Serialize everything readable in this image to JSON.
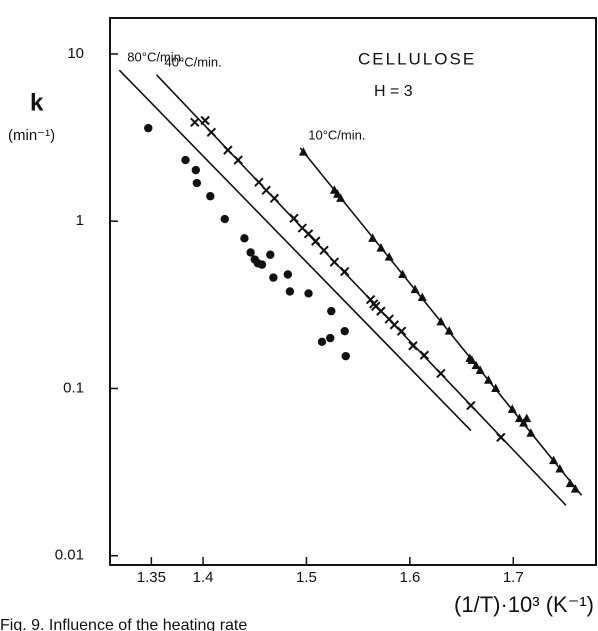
{
  "chart_data": {
    "type": "scatter",
    "title": "CELLULOSE",
    "subtitle": "H = 3",
    "y_label": "k",
    "y_unit": "(min⁻¹)",
    "x_label": "(1/T)·10³ (K⁻¹)",
    "caption": "Fig. 9. Influence of the heating rate",
    "xlim": [
      1.31,
      1.78
    ],
    "ylim": [
      0.0088,
      16.4
    ],
    "log_y": true,
    "xticks": [
      1.35,
      1.4,
      1.5,
      1.6,
      1.7
    ],
    "yticks": [
      10,
      1,
      0.1,
      0.01
    ],
    "color": "#111111",
    "series": [
      {
        "name": "80°C/min.",
        "marker": "circle",
        "x": [
          1.347,
          1.383,
          1.393,
          1.394,
          1.407,
          1.421,
          1.44,
          1.446,
          1.45,
          1.453,
          1.457,
          1.465,
          1.468,
          1.482,
          1.484,
          1.502,
          1.515,
          1.524,
          1.523,
          1.537,
          1.538
        ],
        "values": [
          3.6,
          2.32,
          2.02,
          1.69,
          1.41,
          1.03,
          0.79,
          0.65,
          0.59,
          0.56,
          0.55,
          0.63,
          0.46,
          0.48,
          0.38,
          0.37,
          0.19,
          0.29,
          0.2,
          0.22,
          0.156
        ],
        "fit_x": [
          1.319,
          1.659
        ],
        "fit_values": [
          8.0,
          0.056
        ]
      },
      {
        "name": "40°C/min.",
        "marker": "cross",
        "x": [
          1.392,
          1.402,
          1.408,
          1.424,
          1.434,
          1.454,
          1.461,
          1.469,
          1.488,
          1.496,
          1.502,
          1.509,
          1.517,
          1.527,
          1.537,
          1.562,
          1.567,
          1.572,
          1.58,
          1.585,
          1.565,
          1.592,
          1.603,
          1.614,
          1.63,
          1.659,
          1.688
        ],
        "values": [
          3.9,
          4.0,
          3.4,
          2.66,
          2.32,
          1.71,
          1.53,
          1.37,
          1.04,
          0.91,
          0.84,
          0.76,
          0.67,
          0.57,
          0.5,
          0.34,
          0.31,
          0.29,
          0.26,
          0.24,
          0.32,
          0.22,
          0.18,
          0.158,
          0.123,
          0.079,
          0.051
        ],
        "fit_x": [
          1.355,
          1.751
        ],
        "fit_values": [
          7.5,
          0.02
        ]
      },
      {
        "name": "10°C/min.",
        "marker": "triangle",
        "x": [
          1.497,
          1.527,
          1.53,
          1.533,
          1.564,
          1.572,
          1.58,
          1.593,
          1.605,
          1.612,
          1.63,
          1.638,
          1.658,
          1.66,
          1.664,
          1.668,
          1.676,
          1.683,
          1.699,
          1.706,
          1.713,
          1.71,
          1.717,
          1.739,
          1.745,
          1.755,
          1.76
        ],
        "values": [
          2.59,
          1.53,
          1.45,
          1.37,
          0.79,
          0.69,
          0.61,
          0.48,
          0.39,
          0.35,
          0.25,
          0.22,
          0.151,
          0.147,
          0.137,
          0.128,
          0.112,
          0.1,
          0.075,
          0.066,
          0.066,
          0.062,
          0.054,
          0.037,
          0.033,
          0.027,
          0.025
        ],
        "fit_x": [
          1.494,
          1.766
        ],
        "fit_values": [
          2.74,
          0.023
        ]
      }
    ]
  }
}
